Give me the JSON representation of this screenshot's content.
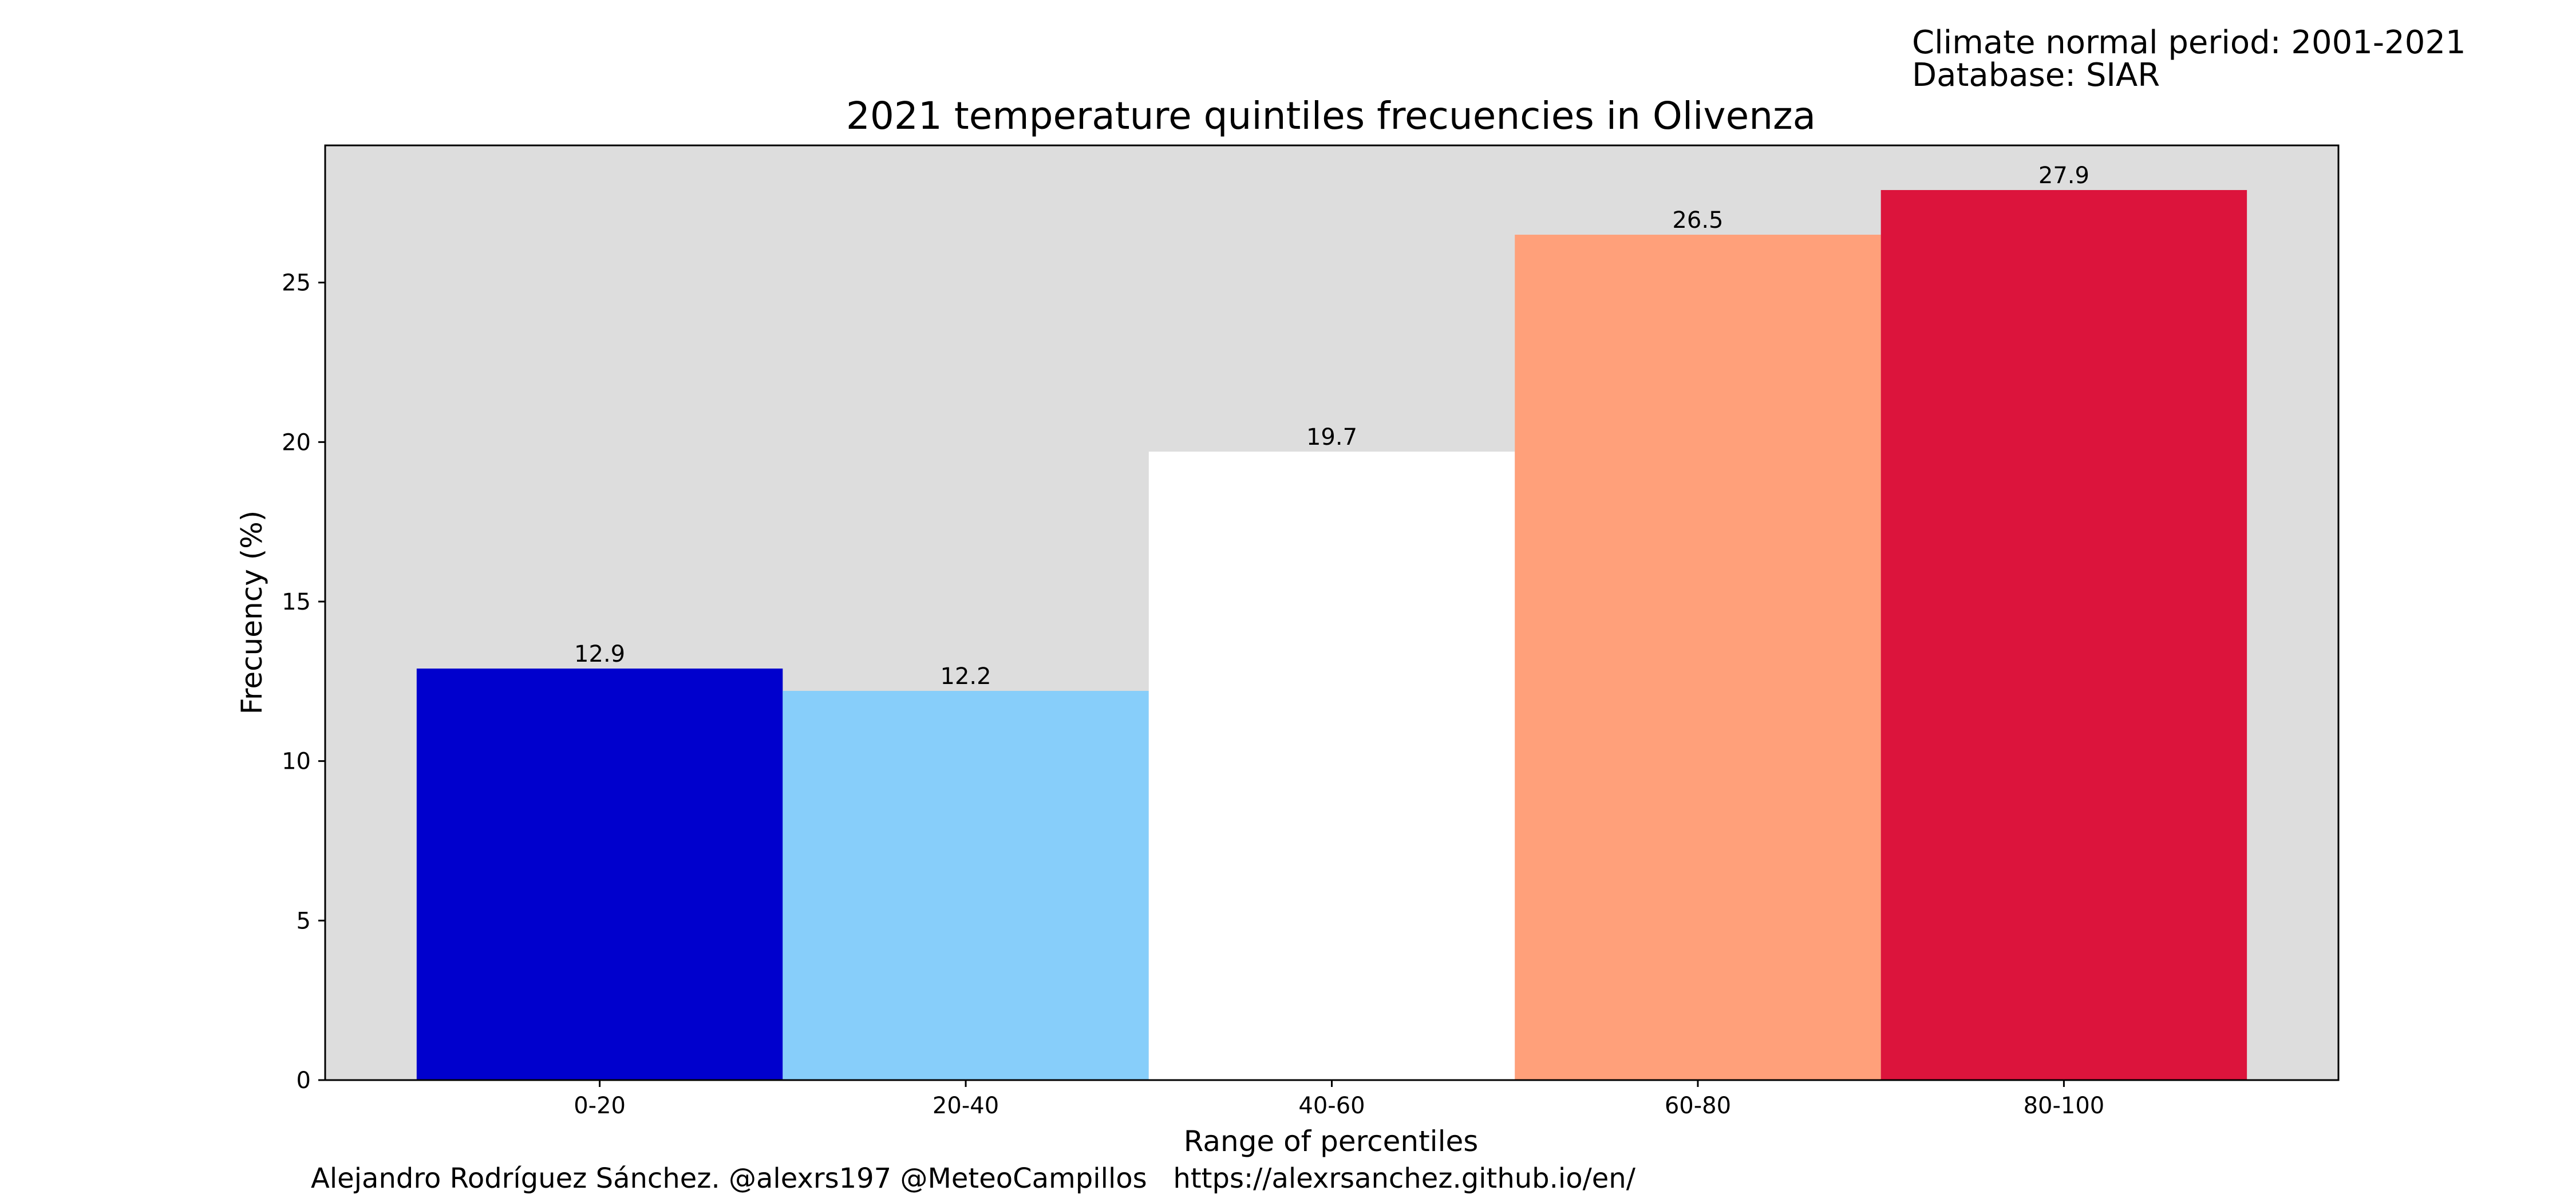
{
  "info_lines": [
    "Climate normal period: 2001-2021",
    "Database: SIAR"
  ],
  "footer": "Alejandro Rodríguez Sánchez. @alexrs197 @MeteoCampillos   https://alexrsanchez.github.io/en/",
  "chart_data": {
    "type": "bar",
    "title": "2021 temperature quintiles frecuencies in Olivenza",
    "xlabel": "Range of percentiles",
    "ylabel": "Frecuency (%)",
    "categories": [
      "0-20",
      "20-40",
      "40-60",
      "60-80",
      "80-100"
    ],
    "values": [
      12.9,
      12.2,
      19.7,
      26.5,
      27.9
    ],
    "value_labels": [
      "12.9",
      "12.2",
      "19.7",
      "26.5",
      "27.9"
    ],
    "colors": [
      "#0000cd",
      "#87cefa",
      "#ffffff",
      "#ffa07a",
      "#dc143c"
    ],
    "background_color": "#dddddd",
    "ylim": [
      0,
      29.3
    ],
    "yticks": [
      0,
      5,
      10,
      15,
      20,
      25
    ],
    "ytick_labels": [
      "0",
      "5",
      "10",
      "15",
      "20",
      "25"
    ],
    "grid": false,
    "legend": "none"
  }
}
